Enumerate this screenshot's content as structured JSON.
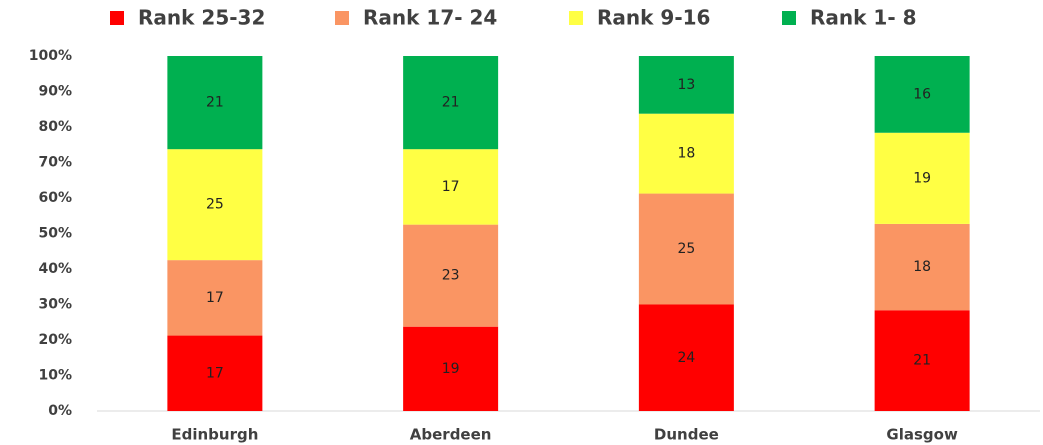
{
  "chart_data": {
    "type": "bar",
    "stacking": "percent",
    "categories": [
      "Edinburgh",
      "Aberdeen",
      "Dundee",
      "Glasgow"
    ],
    "series": [
      {
        "name": "Rank 25-32",
        "color": "#ff0000",
        "values": [
          17,
          19,
          24,
          21
        ]
      },
      {
        "name": "Rank 17- 24",
        "color": "#fa9563",
        "values": [
          17,
          23,
          25,
          18
        ]
      },
      {
        "name": "Rank 9-16",
        "color": "#ffff44",
        "values": [
          25,
          17,
          18,
          19
        ]
      },
      {
        "name": "Rank 1- 8",
        "color": "#00b050",
        "values": [
          21,
          21,
          13,
          16
        ]
      }
    ],
    "ylim": [
      0,
      100
    ],
    "yticks": [
      {
        "value": 0,
        "label": "0%"
      },
      {
        "value": 10,
        "label": "10%"
      },
      {
        "value": 20,
        "label": "20%"
      },
      {
        "value": 30,
        "label": "30%"
      },
      {
        "value": 40,
        "label": "40%"
      },
      {
        "value": 50,
        "label": "50%"
      },
      {
        "value": 60,
        "label": "60%"
      },
      {
        "value": 70,
        "label": "70%"
      },
      {
        "value": 80,
        "label": "80%"
      },
      {
        "value": 90,
        "label": "90%"
      },
      {
        "value": 100,
        "label": "100%"
      }
    ],
    "grid": false,
    "legend": "top"
  }
}
